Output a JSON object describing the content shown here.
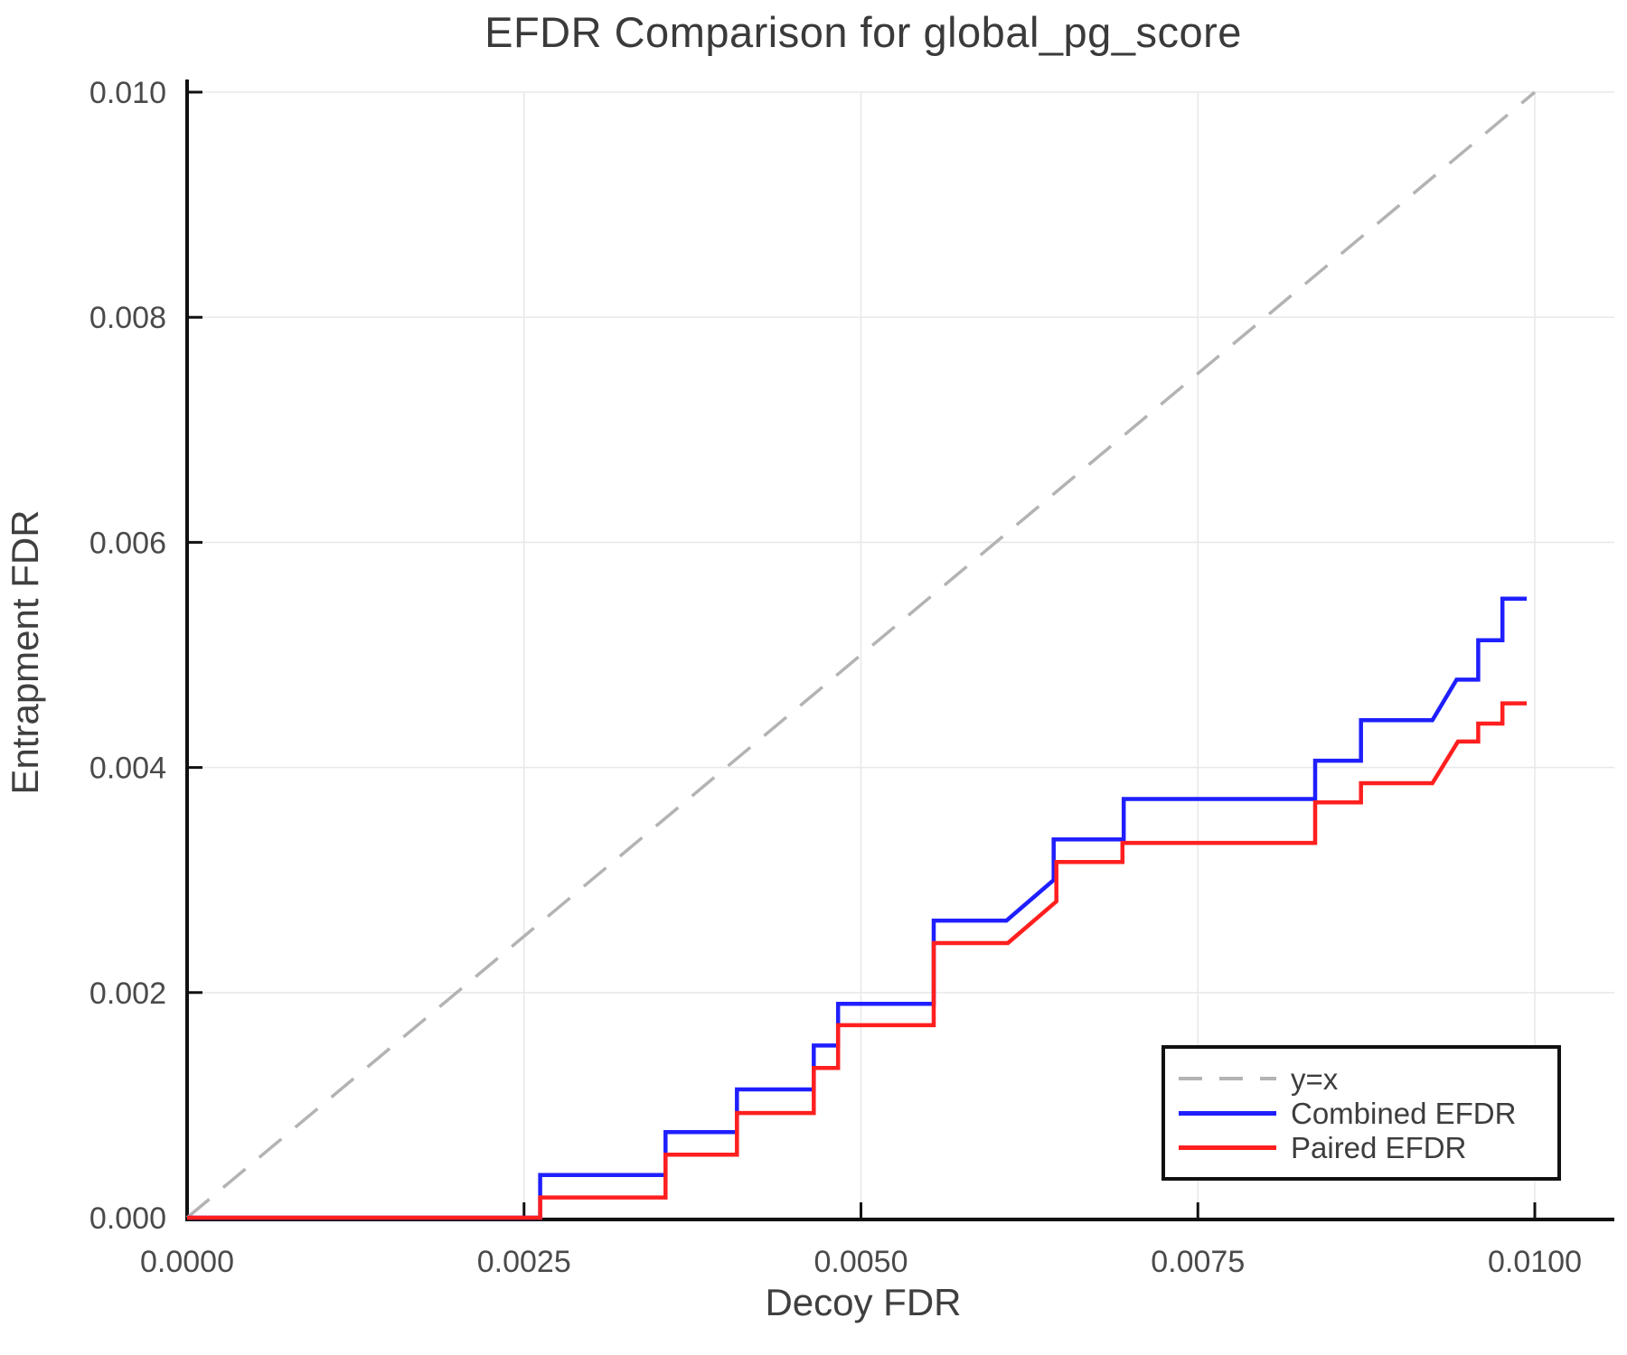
{
  "page": {
    "background": "#ffffff"
  },
  "chart_data": {
    "type": "line",
    "title": "EFDR Comparison for global_pg_score",
    "xlabel": "Decoy FDR",
    "ylabel": "Entrapment FDR",
    "xlim": [
      0.0,
      0.01
    ],
    "ylim": [
      0.0,
      0.01
    ],
    "grid": true,
    "legend_position": "bottom-right",
    "xticks": {
      "values": [
        0.0,
        0.0025,
        0.005,
        0.0075,
        0.01
      ],
      "labels": [
        "0.0000",
        "0.0025",
        "0.0050",
        "0.0075",
        "0.0100"
      ]
    },
    "yticks": {
      "values": [
        0.0,
        0.002,
        0.004,
        0.006,
        0.008,
        0.01
      ],
      "labels": [
        "0.000",
        "0.002",
        "0.004",
        "0.006",
        "0.008",
        "0.010"
      ]
    },
    "series": [
      {
        "id": "identity",
        "name": "y=x",
        "style": "dashed",
        "color": "#b3b3b3",
        "points": [
          [
            0.0,
            0.0
          ],
          [
            0.01,
            0.01
          ]
        ]
      },
      {
        "id": "combined-efdr",
        "name": "Combined EFDR",
        "style": "solid",
        "color": "#1f1fff",
        "points": [
          [
            0.0,
            0.0
          ],
          [
            0.00262,
            0.0
          ],
          [
            0.00262,
            0.00038
          ],
          [
            0.00355,
            0.00038
          ],
          [
            0.00355,
            0.00076
          ],
          [
            0.00408,
            0.00076
          ],
          [
            0.00408,
            0.00114
          ],
          [
            0.00465,
            0.00114
          ],
          [
            0.00465,
            0.00153
          ],
          [
            0.00483,
            0.00153
          ],
          [
            0.00483,
            0.0019
          ],
          [
            0.00554,
            0.0019
          ],
          [
            0.00554,
            0.00264
          ],
          [
            0.00608,
            0.00264
          ],
          [
            0.00643,
            0.003
          ],
          [
            0.00643,
            0.00336
          ],
          [
            0.00695,
            0.00336
          ],
          [
            0.00695,
            0.00372
          ],
          [
            0.00837,
            0.00372
          ],
          [
            0.00837,
            0.00406
          ],
          [
            0.00871,
            0.00406
          ],
          [
            0.00871,
            0.00442
          ],
          [
            0.00924,
            0.00442
          ],
          [
            0.00942,
            0.00478
          ],
          [
            0.00958,
            0.00478
          ],
          [
            0.00958,
            0.00513
          ],
          [
            0.00976,
            0.00513
          ],
          [
            0.00976,
            0.0055
          ],
          [
            0.00994,
            0.0055
          ]
        ]
      },
      {
        "id": "paired-efdr",
        "name": "Paired EFDR",
        "style": "solid",
        "color": "#ff1f1f",
        "points": [
          [
            0.0,
            0.0
          ],
          [
            0.00262,
            0.0
          ],
          [
            0.00262,
            0.00018
          ],
          [
            0.00355,
            0.00018
          ],
          [
            0.00355,
            0.00056
          ],
          [
            0.00408,
            0.00056
          ],
          [
            0.00408,
            0.00093
          ],
          [
            0.00465,
            0.00093
          ],
          [
            0.00465,
            0.00133
          ],
          [
            0.00483,
            0.00133
          ],
          [
            0.00483,
            0.00171
          ],
          [
            0.00554,
            0.00171
          ],
          [
            0.00554,
            0.00244
          ],
          [
            0.00609,
            0.00244
          ],
          [
            0.00645,
            0.00281
          ],
          [
            0.00645,
            0.00316
          ],
          [
            0.00694,
            0.00316
          ],
          [
            0.00694,
            0.00333
          ],
          [
            0.00837,
            0.00333
          ],
          [
            0.00837,
            0.00369
          ],
          [
            0.00871,
            0.00369
          ],
          [
            0.00871,
            0.00386
          ],
          [
            0.00924,
            0.00386
          ],
          [
            0.00943,
            0.00423
          ],
          [
            0.00958,
            0.00423
          ],
          [
            0.00958,
            0.00439
          ],
          [
            0.00976,
            0.00439
          ],
          [
            0.00976,
            0.00457
          ],
          [
            0.00994,
            0.00457
          ]
        ]
      }
    ],
    "colors": {
      "axis": "#111111",
      "grid": "#e9e9e9",
      "tick_label": "#4a4a4a",
      "text": "#3a3a3a"
    }
  }
}
